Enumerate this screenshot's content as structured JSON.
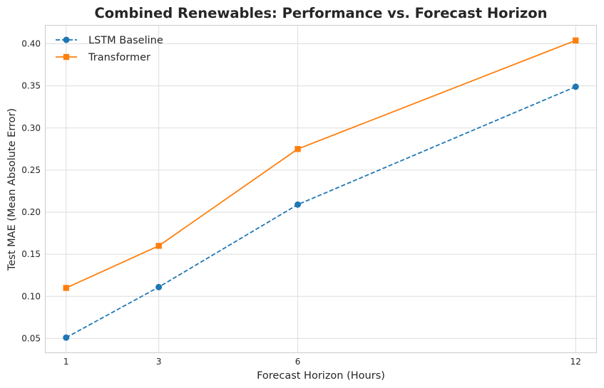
{
  "chart_data": {
    "type": "line",
    "title": "Combined Renewables: Performance vs. Forecast Horizon",
    "xlabel": "Forecast Horizon (Hours)",
    "ylabel": "Test MAE (Mean Absolute Error)",
    "x": [
      1,
      3,
      6,
      12
    ],
    "x_ticks": [
      "1",
      "3",
      "6",
      "12"
    ],
    "xlim": [
      0.55,
      12.45
    ],
    "y_ticks": [
      "0.05",
      "0.10",
      "0.15",
      "0.20",
      "0.25",
      "0.30",
      "0.35",
      "0.40"
    ],
    "y_tick_values": [
      0.05,
      0.1,
      0.15,
      0.2,
      0.25,
      0.3,
      0.35,
      0.4
    ],
    "ylim": [
      0.033,
      0.422
    ],
    "grid": true,
    "legend_position": "upper left",
    "series": [
      {
        "name": "LSTM Baseline",
        "values": [
          0.051,
          0.111,
          0.209,
          0.349
        ],
        "color": "#1f77b4",
        "line_style": "dashed",
        "marker": "circle"
      },
      {
        "name": "Transformer",
        "values": [
          0.11,
          0.16,
          0.275,
          0.404
        ],
        "color": "#ff7f0e",
        "line_style": "solid",
        "marker": "square"
      }
    ]
  }
}
